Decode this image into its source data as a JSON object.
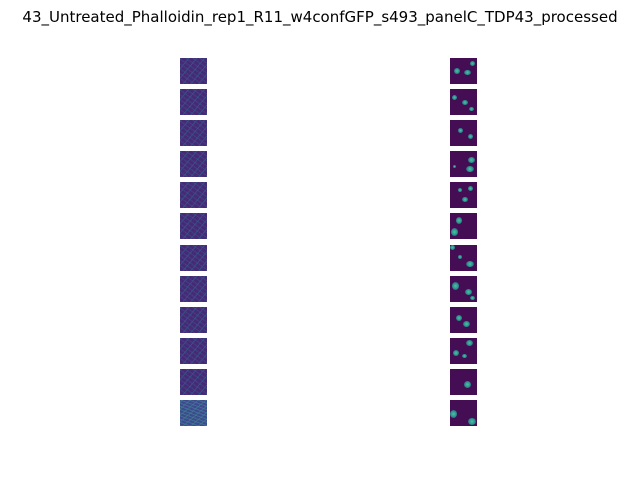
{
  "figure": {
    "title": "43_Untreated_Phalloidin_rep1_R11_w4confGFP_s493_panelC_TDP43_processed"
  },
  "panels": {
    "left_tile_count": 12,
    "right_tile_count": 12
  },
  "colors": {
    "background": "#ffffff",
    "colormap_low": "#440154",
    "colormap_mid": "#21918c",
    "colormap_high": "#5ec962"
  }
}
